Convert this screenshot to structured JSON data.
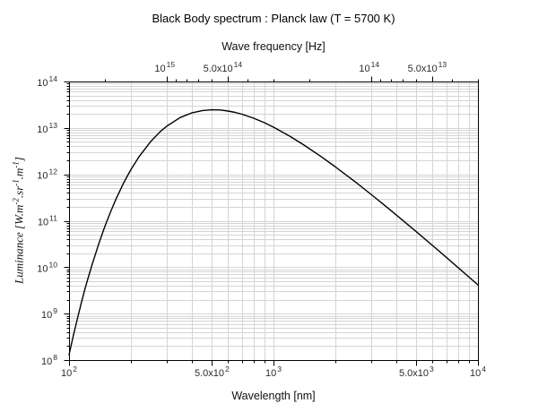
{
  "chart_data": {
    "type": "line",
    "title": "Black Body spectrum : Planck law (T = 5700 K)",
    "xlabel": "Wavelength [nm]",
    "x2label": "Wave frequency [Hz]",
    "ylabel_text": "Luminance [W.m^-2.sr^-1.m^-1]",
    "ylabel_segments": [
      {
        "t": "Luminance ["
      },
      {
        "t": "W.m"
      },
      {
        "sup": "-2"
      },
      {
        "t": ".sr"
      },
      {
        "sup": "-1"
      },
      {
        "t": ".m"
      },
      {
        "sup": "-1"
      },
      {
        "t": "]"
      }
    ],
    "x_scale": "log",
    "y_scale": "log",
    "xlim": [
      100,
      10000
    ],
    "ylim": [
      100000000.0,
      100000000000000.0
    ],
    "grid": true,
    "legend": "none",
    "x_ticks": [
      {
        "base": "10",
        "exp": "2",
        "value": 100
      },
      {
        "base": "5.0x10",
        "exp": "2",
        "value": 500
      },
      {
        "base": "10",
        "exp": "3",
        "value": 1000
      },
      {
        "base": "5.0x10",
        "exp": "3",
        "value": 5000
      },
      {
        "base": "10",
        "exp": "4",
        "value": 10000
      }
    ],
    "y_ticks": [
      {
        "base": "10",
        "exp": "8",
        "value": 100000000.0
      },
      {
        "base": "10",
        "exp": "9",
        "value": 1000000000.0
      },
      {
        "base": "10",
        "exp": "10",
        "value": 10000000000.0
      },
      {
        "base": "10",
        "exp": "11",
        "value": 100000000000.0
      },
      {
        "base": "10",
        "exp": "12",
        "value": 1000000000000.0
      },
      {
        "base": "10",
        "exp": "13",
        "value": 10000000000000.0
      },
      {
        "base": "10",
        "exp": "14",
        "value": 100000000000000.0
      }
    ],
    "x2_ticks": [
      {
        "base": "10",
        "exp": "15",
        "freq_hz": 1000000000000000.0
      },
      {
        "base": "5.0x10",
        "exp": "14",
        "freq_hz": 500000000000000.0
      },
      {
        "base": "10",
        "exp": "14",
        "freq_hz": 100000000000000.0
      },
      {
        "base": "5.0x10",
        "exp": "13",
        "freq_hz": 50000000000000.0
      }
    ],
    "series": [
      {
        "name": "Planck law (T = 5700 K)",
        "x": [
          100,
          105,
          110,
          115,
          120,
          125,
          130,
          140,
          150,
          160,
          170,
          185,
          200,
          220,
          250,
          280,
          300,
          350,
          400,
          450,
          500,
          550,
          600,
          650,
          700,
          800,
          900,
          1000,
          1200,
          1400,
          1700,
          2000,
          2500,
          3000,
          3500,
          4000,
          5000,
          6000,
          7000,
          8000,
          9000,
          10000
        ],
        "y": [
          130000000.0,
          338000000.0,
          790000000.0,
          1740000000.0,
          3600000000.0,
          6660000000.0,
          11800000000.0,
          32700000000.0,
          77000000000.0,
          159000000000.0,
          298000000000.0,
          656000000000.0,
          1230000000000.0,
          2410000000000.0,
          5000000000000.0,
          8420000000000.0,
          10870000000000.0,
          16750000000000.0,
          21200000000000.0,
          23700000000000.0,
          24600000000000.0,
          24300000000000.0,
          23100000000000.0,
          21600000000000.0,
          19800000000000.0,
          16200000000000.0,
          13000000000000.0,
          10400000000000.0,
          6650000000000.0,
          4370000000000.0,
          2460000000000.0,
          1470000000000.0,
          700000000000.0,
          371000000000.0,
          215000000000.0,
          132000000000.0,
          58000000000.0,
          29300000000.0,
          16300000000.0,
          9800000000.0,
          6230000000.0,
          4150000000.0
        ]
      }
    ],
    "colors": {
      "curve": "#000000",
      "grid": "#d5d5d5",
      "frame": "#000000",
      "text": "#2b2b2b"
    }
  }
}
